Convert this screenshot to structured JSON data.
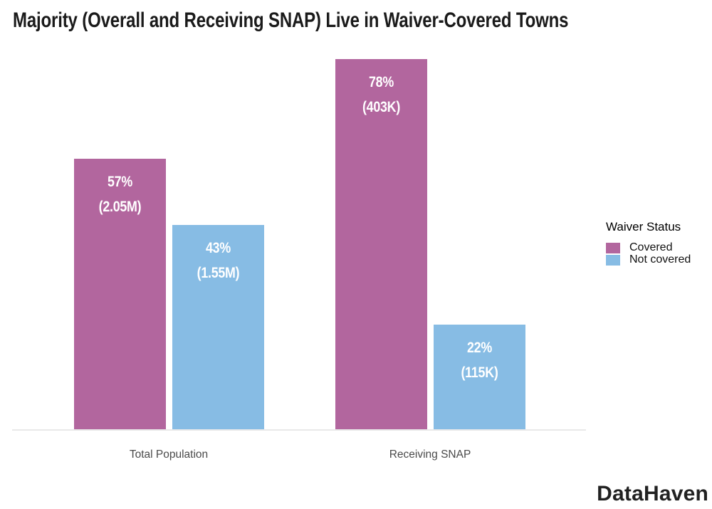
{
  "title": "Majority (Overall and Receiving SNAP) Live in Waiver-Covered Towns",
  "logo_text": "DataHaven",
  "legend": {
    "title": "Waiver Status",
    "items": [
      {
        "label": "Covered",
        "color": "#b2669e"
      },
      {
        "label": "Not covered",
        "color": "#87bce4"
      }
    ]
  },
  "colors": {
    "covered": "#b2669e",
    "not_covered": "#87bce4",
    "baseline": "#e9e9e9"
  },
  "chart_data": {
    "type": "bar",
    "title": "Majority (Overall and Receiving SNAP) Live in Waiver-Covered Towns",
    "categories": [
      "Total Population",
      "Receiving SNAP"
    ],
    "series": [
      {
        "name": "Covered",
        "color": "#b2669e",
        "values": [
          57,
          78
        ],
        "count_labels": [
          "2.05M",
          "403K"
        ]
      },
      {
        "name": "Not covered",
        "color": "#87bce4",
        "values": [
          43,
          22
        ],
        "count_labels": [
          "1.55M",
          "115K"
        ]
      }
    ],
    "value_unit": "percent",
    "bar_label_format": "{value}% ({count})",
    "xlabel": "",
    "ylabel": "",
    "ylim": [
      0,
      100
    ],
    "grid": false,
    "y_axis_shown": false,
    "legend_title": "Waiver Status",
    "legend_position": "right"
  }
}
